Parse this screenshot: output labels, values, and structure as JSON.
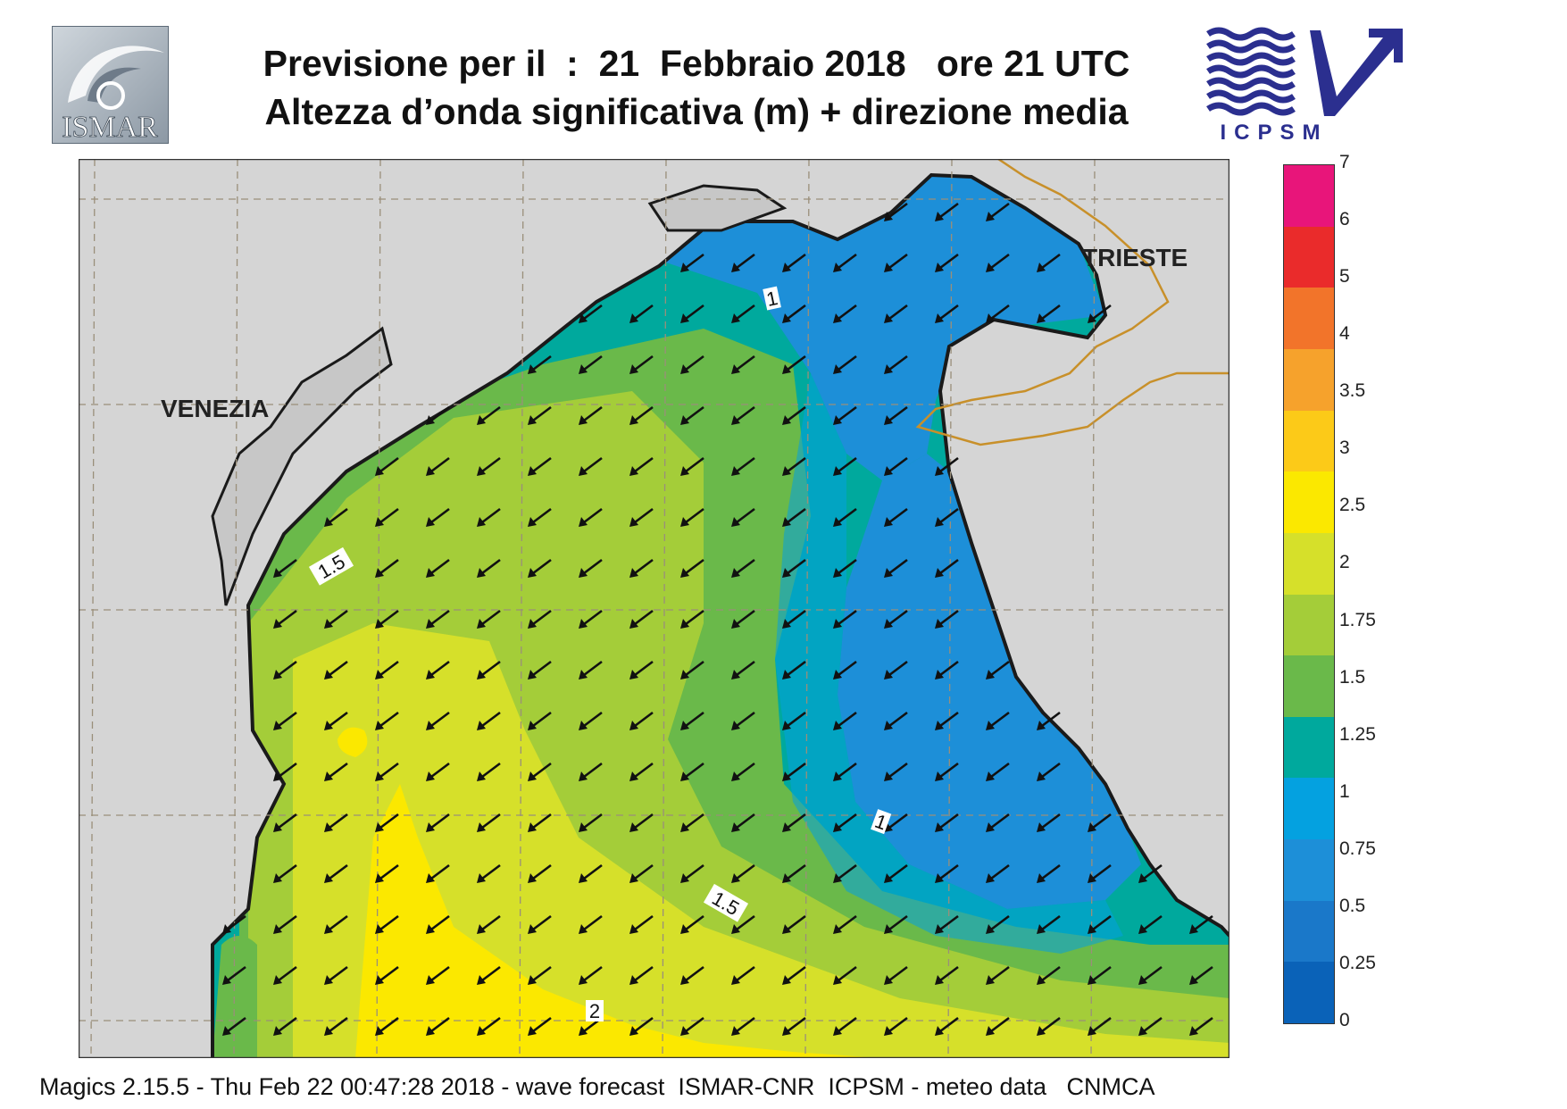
{
  "header": {
    "title_line1": "Previsione per il  :  21  Febbraio 2018   ore 21 UTC",
    "title_line2": "Altezza d’onda significativa (m) + direzione media"
  },
  "logos": {
    "left": {
      "text": "ISMAR",
      "icon": "ismar-logo-icon"
    },
    "right": {
      "text": "ICPSM",
      "icon": "icpsm-logo-icon"
    }
  },
  "map": {
    "places": [
      "VENEZIA",
      "TRIESTE"
    ],
    "contour_labels": [
      "1",
      "1.5",
      "1",
      "1.5",
      "2"
    ],
    "arrow_direction": "south-west",
    "colors": {
      "land": "#d5d5d5",
      "coastline": "#1a1a1a",
      "border": "#c8902a",
      "grid": "#9a8f7a",
      "arrow": "#111111"
    }
  },
  "legend": {
    "labels": [
      "7",
      "6",
      "5",
      "4",
      "3.5",
      "3",
      "2.5",
      "2",
      "1.75",
      "1.5",
      "1.25",
      "1",
      "0.75",
      "0.5",
      "0.25",
      "0"
    ],
    "colors": [
      "#e8157a",
      "#ea2b2b",
      "#f2742a",
      "#f6a22c",
      "#fcca18",
      "#fbe800",
      "#d6e02a",
      "#a4cd39",
      "#6ab94a",
      "#00a99d",
      "#04a1e0",
      "#1d8fd8",
      "#1a78c9",
      "#0a62b8"
    ]
  },
  "footer": {
    "text": "Magics 2.15.5 - Thu Feb 22 00:47:28 2018 - wave forecast  ISMAR-CNR  ICPSM - meteo data   CNMCA"
  }
}
